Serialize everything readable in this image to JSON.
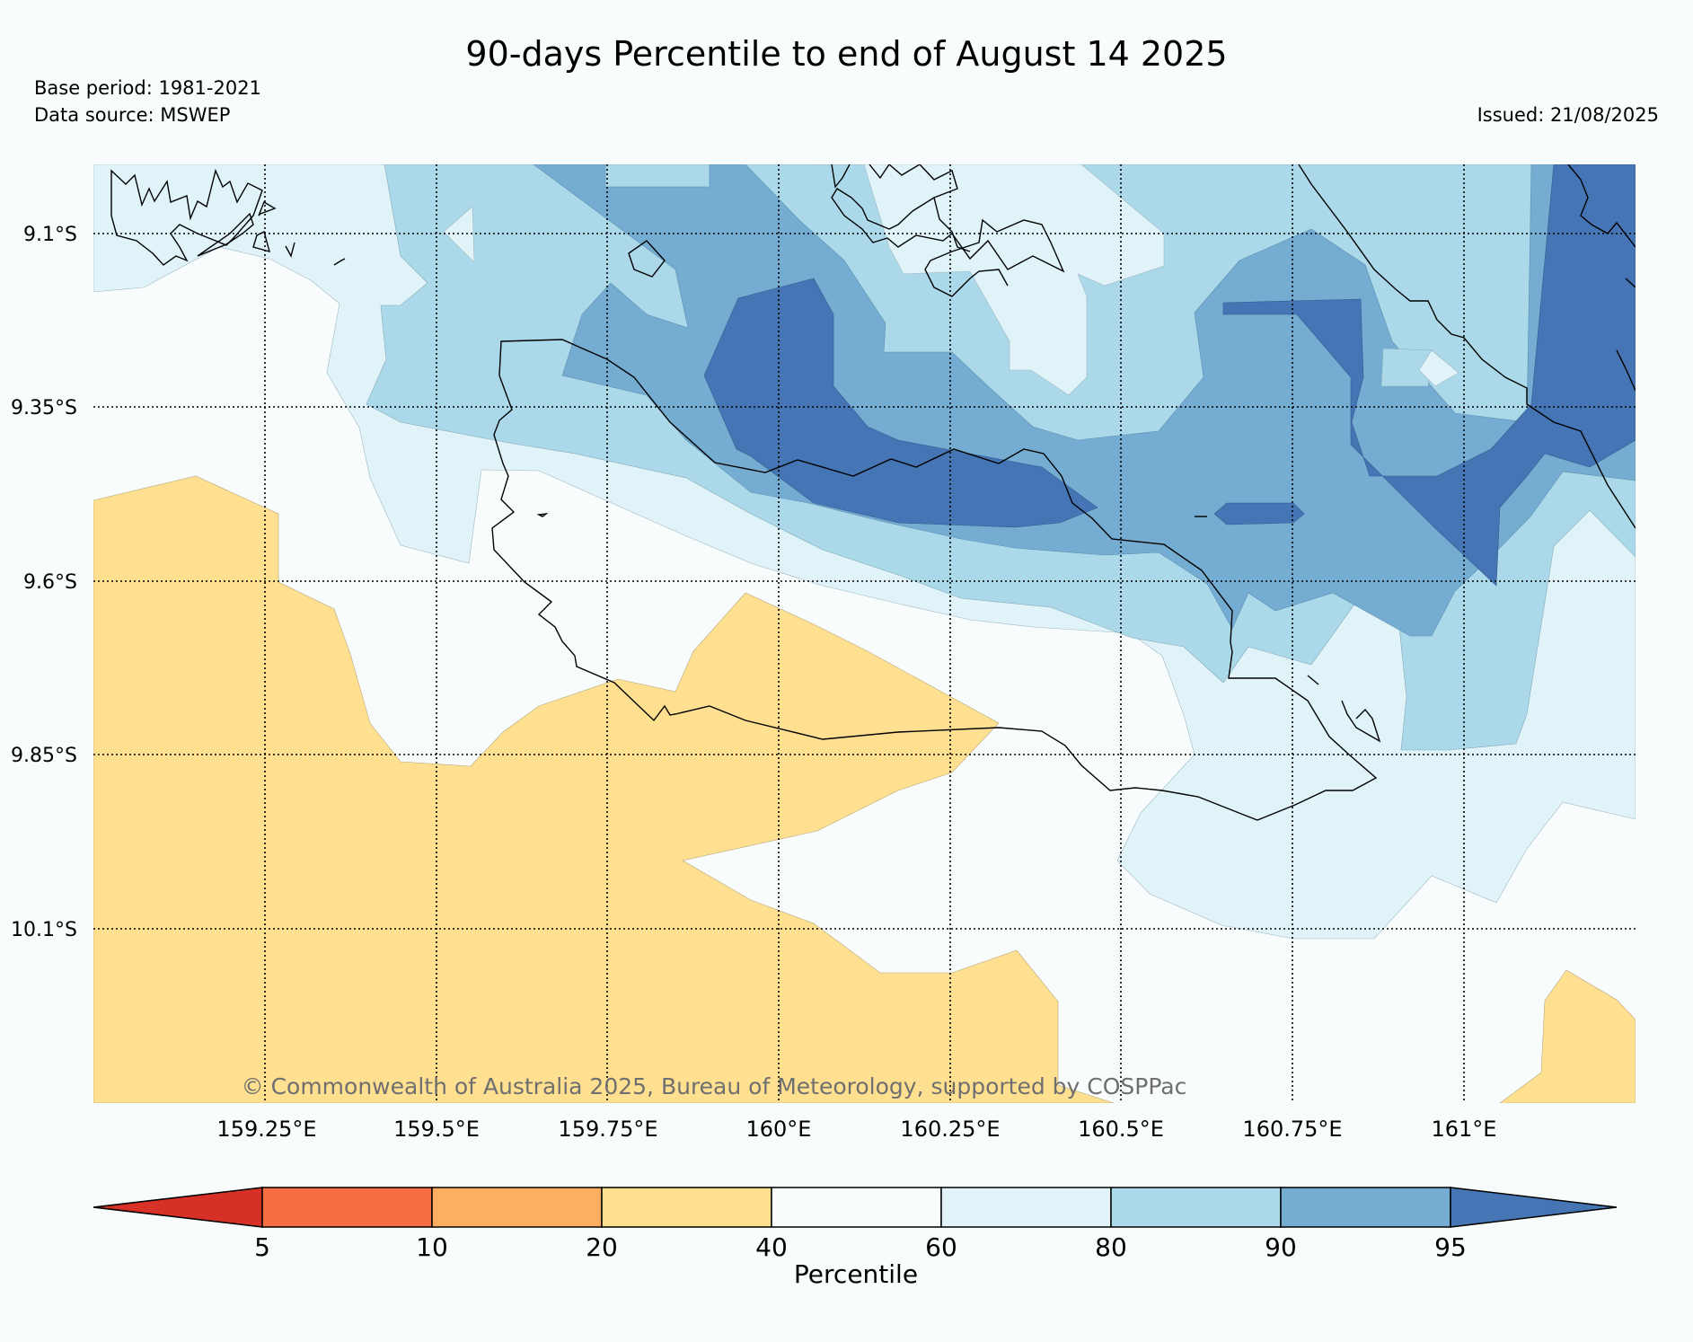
{
  "header": {
    "title": "90-days Percentile to end of August 14 2025",
    "base_period": "Base period: 1981-2021",
    "data_source": "Data source: MSWEP",
    "issued": "Issued: 21/08/2025"
  },
  "map": {
    "copyright": "© Commonwealth of Australia 2025, Bureau of Meteorology, supported by COSPPac",
    "lat_labels": [
      "9.1°S",
      "9.35°S",
      "9.6°S",
      "9.85°S",
      "10.1°S"
    ],
    "lon_labels": [
      "159.25°E",
      "159.5°E",
      "159.75°E",
      "160°E",
      "160.25°E",
      "160.5°E",
      "160.75°E",
      "161°E"
    ]
  },
  "colorbar": {
    "label": "Percentile",
    "ticks": [
      "5",
      "10",
      "20",
      "40",
      "60",
      "80",
      "90",
      "95"
    ],
    "colors": {
      "below_5": "#d73027",
      "5_10": "#f46d43",
      "10_20": "#fdae61",
      "20_40": "#fee090",
      "40_60": "#f8fcfd",
      "60_80": "#e0f3f8",
      "80_90": "#abd9e9",
      "90_95": "#74add1",
      "above_95": "#4575b4"
    }
  }
}
